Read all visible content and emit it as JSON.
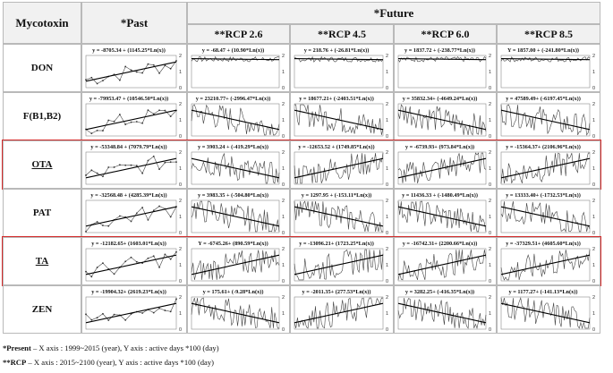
{
  "header": {
    "mycotoxin": "Mycotoxin",
    "past": "*Past",
    "future": "*Future",
    "scenarios": [
      "**RCP 2.6",
      "**RCP 4.5",
      "**RCP 6.0",
      "**RCP 8.5"
    ]
  },
  "rows": [
    {
      "label": "DON",
      "highlight": false,
      "equations": [
        "y = -8705.34 + (1145.25*Ln(x))",
        "y = -68.47 + (10.90*Ln(x))",
        "y = 218.76 + (-26.81*Ln(x))",
        "y = 1837.72 + (-238.77*Ln(x))",
        "Y = 1857.00 + (-241.80*Ln(x))"
      ]
    },
    {
      "label": "F(B1,B2)",
      "highlight": false,
      "equations": [
        "y = -79953.47 + (10546.50*Ln(x))",
        "y = 23210.77+ (-2996.47*Ln(x))",
        "y = 18677.21+ (-2403.51*Ln(x))",
        "y = 35832.34+ (-4649.24*Ln(x))",
        "y = 47589.49+ (-6197.45*Ln(x))"
      ]
    },
    {
      "label": "OTA",
      "highlight": true,
      "equations": [
        "y = -53348.84 + (7079.79*Ln(x))",
        "y = 3903.24 + (-419.29*Ln(x))",
        "y = -12653.52 + (1749.85*Ln(x))",
        "y = -6739.93+ (973.84*Ln(x))",
        "y = -15364.37+ (2106.96*Ln(x))"
      ]
    },
    {
      "label": "PAT",
      "highlight": false,
      "equations": [
        "y = -32568.48 + (4285.39*Ln(x))",
        "y = 3983.35 + (-504.80*Ln(x))",
        "y = 1297.95 + (-153.11*Ln(x))",
        "y = 11436.33 + (-1480.49*Ln(x))",
        "y = 13333.40+ (-1732.53*Ln(x))"
      ]
    },
    {
      "label": "TA",
      "highlight": true,
      "equations": [
        "y = -12182.65+ (1603.01*Ln(x))",
        "Y = -6745.26+ (890.59*Ln(x))",
        "y = -13096.21+ (1723.25*Ln(x))",
        "y = -16742.31+ (2200.66*Ln(x))",
        "y = -37329.51+ (4605.60*Ln(x))"
      ]
    },
    {
      "label": "ZEN",
      "highlight": false,
      "equations": [
        "y = -19904.32+ (2619.23*Ln(x))",
        "y = 175.61+ (-9.28*Ln(x))",
        "y = -2011.35+ (277.53*Ln(x))",
        "y = 3282.25+ (-416.35*Ln(x))",
        "y = 1177.27+ (-141.13*Ln(x))"
      ]
    }
  ],
  "y_ticks": [
    "2",
    "1",
    "0"
  ],
  "footnotes": {
    "present_label": "*Present",
    "present_text": " – X axis : 1999~2015 (year), Y axis : active days *100 (day)",
    "rcp_label": "**RCP",
    "rcp_text": " – X axis : 2015~2100 (year), Y axis : active days *100 (day)"
  },
  "colors": {
    "highlight": "#d42b2b",
    "header_bg": "#f1f1f1",
    "border": "#b9b9b9"
  }
}
